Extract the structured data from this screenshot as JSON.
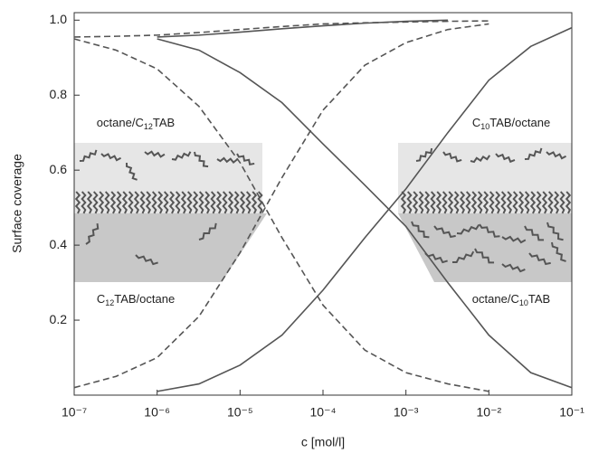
{
  "chart_data": {
    "type": "line",
    "x_label": "c [mol/l]",
    "y_label": "Surface coverage",
    "xscale": "log",
    "xlim": [
      1e-07,
      0.1
    ],
    "ylim": [
      0,
      1.02
    ],
    "xticks": [
      {
        "value": 1e-07,
        "label": "10⁻⁷"
      },
      {
        "value": 1e-06,
        "label": "10⁻⁶"
      },
      {
        "value": 1e-05,
        "label": "10⁻⁵"
      },
      {
        "value": 0.0001,
        "label": "10⁻⁴"
      },
      {
        "value": 0.001,
        "label": "10⁻³"
      },
      {
        "value": 0.01,
        "label": "10⁻²"
      },
      {
        "value": 0.1,
        "label": "10⁻¹"
      }
    ],
    "yticks": [
      0.2,
      0.4,
      0.6,
      0.8,
      {
        "value": 1.0,
        "label": "1.0"
      }
    ],
    "x": [
      1e-07,
      3.2e-07,
      1e-06,
      3.2e-06,
      1e-05,
      3.2e-05,
      0.0001,
      0.00032,
      0.001,
      0.0032,
      0.01,
      0.032,
      0.1
    ],
    "series": [
      {
        "color": "#555555",
        "dash": "dashed",
        "values": [
          0.95,
          0.92,
          0.87,
          0.77,
          0.62,
          0.42,
          0.24,
          0.12,
          0.06,
          0.03,
          0.01,
          null,
          null
        ]
      },
      {
        "color": "#555555",
        "dash": "dashed",
        "values": [
          0.02,
          0.05,
          0.1,
          0.21,
          0.38,
          0.58,
          0.76,
          0.88,
          0.94,
          0.975,
          0.99,
          null,
          null
        ]
      },
      {
        "color": "#555555",
        "dash": "solid",
        "values": [
          null,
          null,
          0.95,
          0.92,
          0.86,
          0.78,
          0.67,
          0.56,
          0.45,
          0.3,
          0.16,
          0.06,
          0.02
        ]
      },
      {
        "color": "#555555",
        "dash": "solid",
        "values": [
          null,
          null,
          0.01,
          0.03,
          0.08,
          0.16,
          0.28,
          0.42,
          0.55,
          0.7,
          0.84,
          0.93,
          0.98
        ]
      },
      {
        "color": "#555555",
        "dash": "dashed",
        "values": [
          0.955,
          0.957,
          0.96,
          0.967,
          0.975,
          0.983,
          0.99,
          0.993,
          0.995,
          0.997,
          0.998,
          null,
          null
        ]
      },
      {
        "color": "#555555",
        "dash": "solid",
        "values": [
          null,
          null,
          0.955,
          0.96,
          0.968,
          0.977,
          0.985,
          0.992,
          0.997,
          1.0,
          null,
          null,
          null
        ]
      }
    ],
    "annotations": [
      {
        "prefix": "octane/C",
        "sub": "12",
        "suffix": "TAB"
      },
      {
        "prefix": "C",
        "sub": "10",
        "suffix": "TAB/octane"
      },
      {
        "prefix": "C",
        "sub": "12",
        "suffix": "TAB/octane"
      },
      {
        "prefix": "octane/C",
        "sub": "10",
        "suffix": "TAB"
      }
    ]
  }
}
